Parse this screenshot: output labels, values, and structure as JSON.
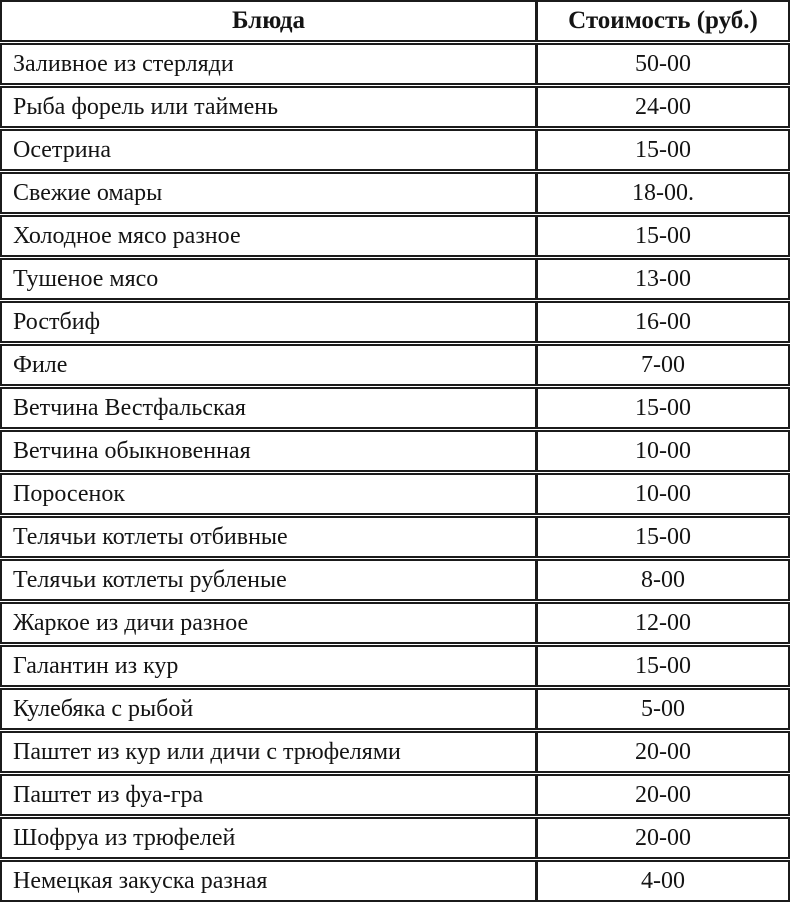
{
  "table": {
    "headers": {
      "dish": "Блюда",
      "price": "Стоимость (руб.)"
    },
    "rows": [
      {
        "dish": "Заливное из стерляди",
        "price": "50-00"
      },
      {
        "dish": "Рыба форель или таймень",
        "price": "24-00"
      },
      {
        "dish": "Осетрина",
        "price": "15-00"
      },
      {
        "dish": "Свежие омары",
        "price": "18-00."
      },
      {
        "dish": "Холодное мясо разное",
        "price": "15-00"
      },
      {
        "dish": "Тушеное мясо",
        "price": "13-00"
      },
      {
        "dish": "Ростбиф",
        "price": "16-00"
      },
      {
        "dish": "Филе",
        "price": "7-00"
      },
      {
        "dish": "Ветчина Вестфальская",
        "price": "15-00"
      },
      {
        "dish": "Ветчина обыкновенная",
        "price": "10-00"
      },
      {
        "dish": "Поросенок",
        "price": "10-00"
      },
      {
        "dish": "Телячьи котлеты отбивные",
        "price": "15-00"
      },
      {
        "dish": "Телячьи котлеты рубленые",
        "price": "8-00"
      },
      {
        "dish": "Жаркое из дичи разное",
        "price": "12-00"
      },
      {
        "dish": "Галантин из кур",
        "price": "15-00"
      },
      {
        "dish": "Кулебяка с рыбой",
        "price": "5-00"
      },
      {
        "dish": "Паштет из кур или дичи с трюфелями",
        "price": "20-00"
      },
      {
        "dish": "Паштет из фуа-гра",
        "price": "20-00"
      },
      {
        "dish": "Шофруа из трюфелей",
        "price": "20-00"
      },
      {
        "dish": "Немецкая закуска разная",
        "price": "4-00"
      }
    ],
    "border_color": "#1b1b1b",
    "text_color": "#141414",
    "background_color": "#ffffff"
  }
}
